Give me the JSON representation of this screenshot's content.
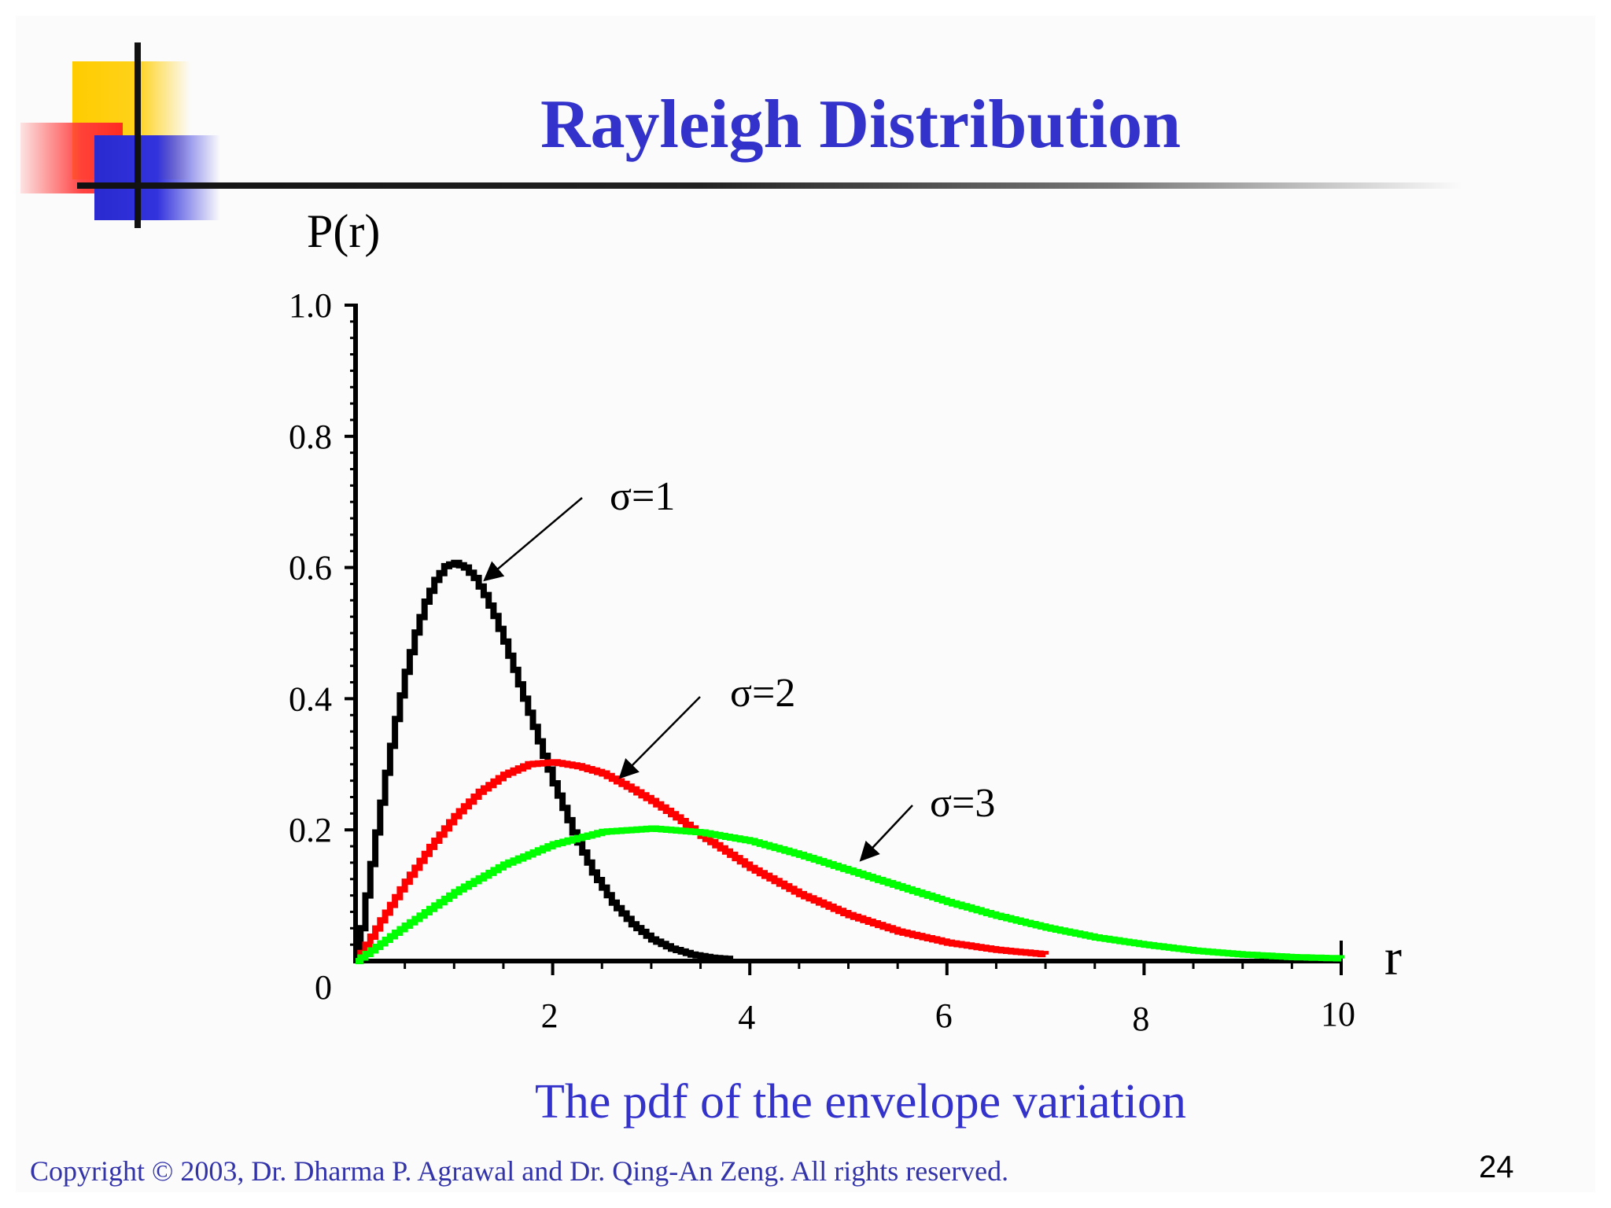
{
  "slide": {
    "title": "Rayleigh Distribution",
    "caption": "The pdf of the envelope variation",
    "footer": "Copyright © 2003, Dr. Dharma P. Agrawal and Dr. Qing-An Zeng. All rights reserved.",
    "page_number": "24"
  },
  "chart_data": {
    "type": "line",
    "title": "",
    "xlabel": "r",
    "ylabel": "P(r)",
    "xlim": [
      0,
      10
    ],
    "ylim": [
      0,
      1.0
    ],
    "x_ticks": [
      2,
      4,
      6,
      8,
      10
    ],
    "x_tick_labels": [
      "2",
      "4",
      "6",
      "8",
      "10"
    ],
    "y_ticks": [
      0,
      0.2,
      0.4,
      0.6,
      0.8,
      1.0
    ],
    "y_tick_labels": [
      "0",
      "0.2",
      "0.4",
      "0.6",
      "0.8",
      "1.0"
    ],
    "grid": false,
    "legend": "none",
    "series": [
      {
        "name": "σ=1",
        "color": "#000000",
        "x": [
          0,
          0.1,
          0.2,
          0.3,
          0.4,
          0.5,
          0.6,
          0.7,
          0.8,
          0.9,
          1.0,
          1.1,
          1.2,
          1.3,
          1.4,
          1.5,
          1.6,
          1.7,
          1.8,
          1.9,
          2.0,
          2.2,
          2.4,
          2.6,
          2.8,
          3.0,
          3.2,
          3.4,
          3.6,
          3.8
        ],
        "y": [
          0,
          0.1,
          0.196,
          0.287,
          0.369,
          0.441,
          0.501,
          0.548,
          0.581,
          0.602,
          0.607,
          0.6,
          0.584,
          0.558,
          0.526,
          0.487,
          0.444,
          0.4,
          0.357,
          0.313,
          0.271,
          0.196,
          0.135,
          0.089,
          0.056,
          0.033,
          0.019,
          0.01,
          0.005,
          0.003
        ]
      },
      {
        "name": "σ=2",
        "color": "#ff0000",
        "x": [
          0,
          0.25,
          0.5,
          0.75,
          1.0,
          1.25,
          1.5,
          1.75,
          2.0,
          2.25,
          2.5,
          2.75,
          3.0,
          3.25,
          3.5,
          3.75,
          4.0,
          4.5,
          5.0,
          5.5,
          6.0,
          6.5,
          7.0
        ],
        "y": [
          0,
          0.062,
          0.121,
          0.174,
          0.221,
          0.258,
          0.284,
          0.3,
          0.303,
          0.297,
          0.286,
          0.266,
          0.244,
          0.219,
          0.191,
          0.167,
          0.142,
          0.102,
          0.07,
          0.045,
          0.028,
          0.017,
          0.01
        ]
      },
      {
        "name": "σ=3",
        "color": "#00ff00",
        "x": [
          0,
          0.5,
          1.0,
          1.5,
          2.0,
          2.5,
          3.0,
          3.5,
          4.0,
          4.5,
          5.0,
          5.5,
          6.0,
          6.5,
          7.0,
          7.5,
          8.0,
          8.5,
          9.0,
          9.5,
          10.0
        ],
        "y": [
          0,
          0.054,
          0.105,
          0.147,
          0.178,
          0.197,
          0.202,
          0.196,
          0.183,
          0.162,
          0.138,
          0.114,
          0.09,
          0.069,
          0.051,
          0.036,
          0.025,
          0.016,
          0.01,
          0.006,
          0.004
        ]
      }
    ],
    "annotations": [
      {
        "text": "σ=1",
        "target_x": 1.4,
        "target_y": 0.6
      },
      {
        "text": "σ=2",
        "target_x": 2.7,
        "target_y": 0.28
      },
      {
        "text": "σ=3",
        "target_x": 5.0,
        "target_y": 0.15
      }
    ]
  }
}
